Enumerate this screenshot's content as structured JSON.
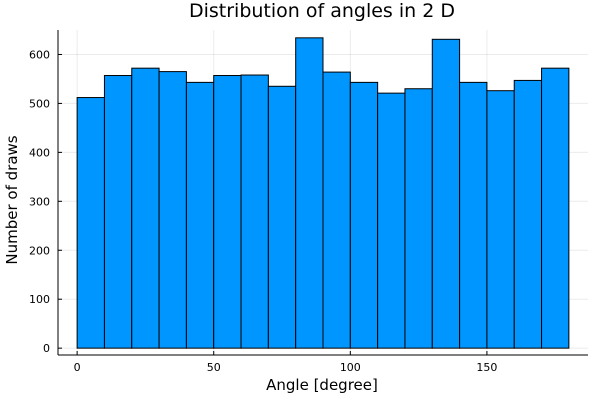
{
  "chart_data": {
    "type": "bar",
    "title": "Distribution of angles in 2 D",
    "xlabel": "Angle [degree]",
    "ylabel": "Number of draws",
    "bin_edges": [
      0,
      10,
      20,
      30,
      40,
      50,
      60,
      70,
      80,
      90,
      100,
      110,
      120,
      130,
      140,
      150,
      160,
      170,
      180
    ],
    "values": [
      512,
      557,
      572,
      565,
      543,
      557,
      558,
      535,
      634,
      564,
      543,
      521,
      530,
      631,
      543,
      526,
      547,
      572
    ],
    "xlim": [
      -7,
      187
    ],
    "ylim": [
      -14,
      650
    ],
    "xticks": [
      0,
      50,
      100,
      150
    ],
    "yticks": [
      0,
      100,
      200,
      300,
      400,
      500,
      600
    ],
    "grid": true,
    "legend": "none",
    "bar_color": "#0096FF",
    "edge_color": "#000000"
  }
}
